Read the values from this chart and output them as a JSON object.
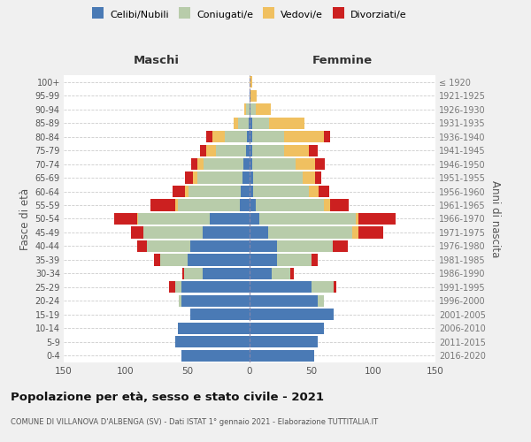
{
  "age_groups": [
    "0-4",
    "5-9",
    "10-14",
    "15-19",
    "20-24",
    "25-29",
    "30-34",
    "35-39",
    "40-44",
    "45-49",
    "50-54",
    "55-59",
    "60-64",
    "65-69",
    "70-74",
    "75-79",
    "80-84",
    "85-89",
    "90-94",
    "95-99",
    "100+"
  ],
  "birth_years": [
    "2016-2020",
    "2011-2015",
    "2006-2010",
    "2001-2005",
    "1996-2000",
    "1991-1995",
    "1986-1990",
    "1981-1985",
    "1976-1980",
    "1971-1975",
    "1966-1970",
    "1961-1965",
    "1956-1960",
    "1951-1955",
    "1946-1950",
    "1941-1945",
    "1936-1940",
    "1931-1935",
    "1926-1930",
    "1921-1925",
    "≤ 1920"
  ],
  "colors": {
    "celibi": "#4a7ab5",
    "coniugati": "#b8ccaa",
    "vedovi": "#f0c060",
    "divorziati": "#cc2020"
  },
  "male": {
    "celibi": [
      55,
      60,
      58,
      48,
      55,
      55,
      38,
      50,
      48,
      38,
      32,
      8,
      7,
      6,
      5,
      3,
      2,
      1,
      0,
      0,
      0
    ],
    "coniugati": [
      0,
      0,
      0,
      0,
      2,
      5,
      15,
      22,
      35,
      48,
      58,
      50,
      42,
      36,
      32,
      24,
      18,
      8,
      3,
      0,
      0
    ],
    "vedovi": [
      0,
      0,
      0,
      0,
      0,
      0,
      0,
      0,
      0,
      0,
      1,
      2,
      3,
      4,
      5,
      8,
      10,
      4,
      1,
      0,
      0
    ],
    "divorziati": [
      0,
      0,
      0,
      0,
      0,
      5,
      1,
      5,
      8,
      10,
      18,
      20,
      10,
      6,
      5,
      5,
      5,
      0,
      0,
      0,
      0
    ]
  },
  "female": {
    "celibi": [
      52,
      55,
      60,
      68,
      55,
      50,
      18,
      22,
      22,
      15,
      8,
      5,
      3,
      3,
      2,
      2,
      2,
      2,
      1,
      1,
      0
    ],
    "coniugati": [
      0,
      0,
      0,
      0,
      5,
      18,
      15,
      28,
      45,
      68,
      78,
      55,
      45,
      40,
      35,
      26,
      26,
      14,
      4,
      0,
      0
    ],
    "vedovi": [
      0,
      0,
      0,
      0,
      0,
      0,
      0,
      0,
      0,
      5,
      2,
      5,
      8,
      10,
      16,
      20,
      32,
      28,
      12,
      5,
      2
    ],
    "divorziati": [
      0,
      0,
      0,
      0,
      0,
      2,
      3,
      5,
      12,
      20,
      30,
      15,
      8,
      5,
      8,
      7,
      5,
      0,
      0,
      0,
      0
    ]
  },
  "title": "Popolazione per età, sesso e stato civile - 2021",
  "subtitle": "COMUNE DI VILLANOVA D'ALBENGA (SV) - Dati ISTAT 1° gennaio 2021 - Elaborazione TUTTITALIA.IT",
  "xlim": 150,
  "legend_labels": [
    "Celibi/Nubili",
    "Coniugati/e",
    "Vedovi/e",
    "Divorziati/e"
  ],
  "ylabel_left": "Fasce di età",
  "ylabel_right": "Anni di nascita",
  "xlabel_maschi": "Maschi",
  "xlabel_femmine": "Femmine",
  "bg_color": "#f0f0f0",
  "plot_bg": "#ffffff"
}
